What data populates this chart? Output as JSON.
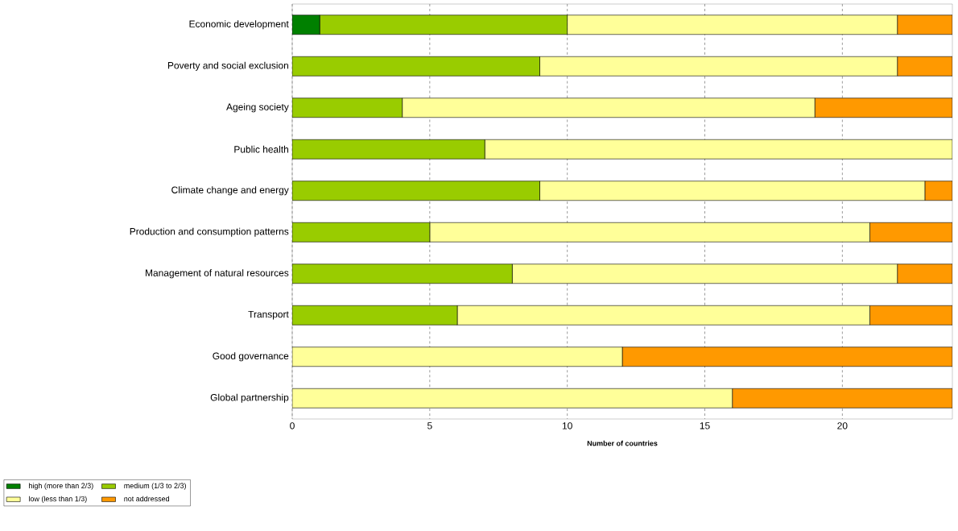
{
  "chart_data": {
    "type": "bar",
    "orientation": "horizontal",
    "stacked": true,
    "xlabel": "Number of countries",
    "categories": [
      "Economic development",
      "Poverty and social exclusion",
      "Ageing society",
      "Public health",
      "Climate change and energy",
      "Production and consumption patterns",
      "Management of natural resources",
      "Transport",
      "Good governance",
      "Global partnership"
    ],
    "series": [
      {
        "name": "high (more than 2/3)",
        "color": "#008000",
        "values": [
          1,
          0,
          0,
          0,
          0,
          0,
          0,
          0,
          0,
          0
        ]
      },
      {
        "name": "medium (1/3 to 2/3)",
        "color": "#99cc00",
        "values": [
          9,
          9,
          4,
          7,
          9,
          5,
          8,
          6,
          0,
          0
        ]
      },
      {
        "name": "low (less than 1/3)",
        "color": "#ffff99",
        "values": [
          12,
          13,
          15,
          17,
          14,
          16,
          14,
          15,
          12,
          16
        ]
      },
      {
        "name": "not addressed",
        "color": "#ff9900",
        "values": [
          2,
          2,
          5,
          0,
          1,
          3,
          2,
          3,
          12,
          8
        ]
      }
    ],
    "xlim": [
      0,
      24
    ],
    "xticks": [
      0,
      5,
      10,
      15,
      20
    ],
    "grid": "x",
    "legend": "bottom left"
  }
}
